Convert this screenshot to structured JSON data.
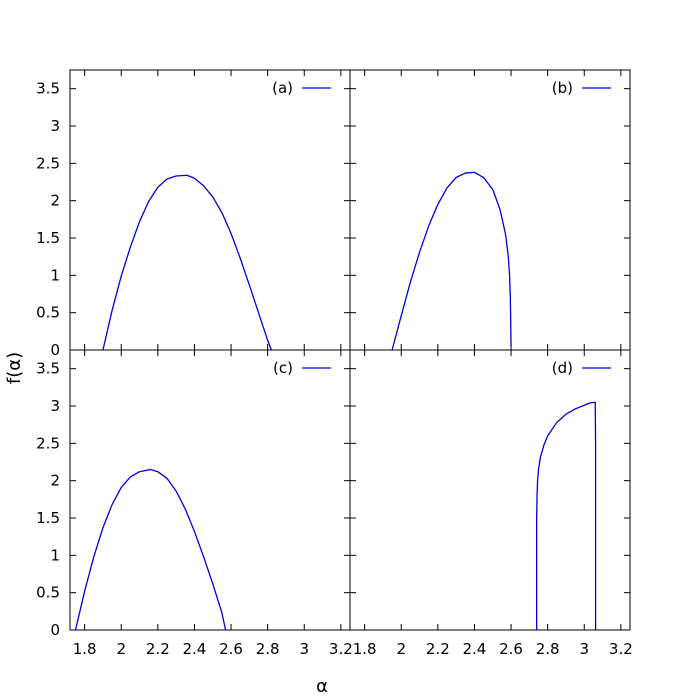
{
  "chart_data": {
    "type": "line",
    "xlabel": "α",
    "ylabel": "f(α)",
    "xlim": [
      1.72,
      3.25
    ],
    "ylim": [
      0,
      3.75
    ],
    "x_ticks": [
      "1.8",
      "2",
      "2.2",
      "2.4",
      "2.6",
      "2.8",
      "3",
      "3.2"
    ],
    "y_ticks": [
      "0",
      "0.5",
      "1",
      "1.5",
      "2",
      "2.5",
      "3",
      "3.5"
    ],
    "grid": false,
    "legend_position": "top-right",
    "line_color": "#0000dd",
    "panels": [
      {
        "label": "(a)",
        "points": [
          [
            1.9,
            0.0
          ],
          [
            1.95,
            0.53
          ],
          [
            2.0,
            0.99
          ],
          [
            2.05,
            1.38
          ],
          [
            2.1,
            1.72
          ],
          [
            2.15,
            1.99
          ],
          [
            2.2,
            2.18
          ],
          [
            2.25,
            2.29
          ],
          [
            2.3,
            2.33
          ],
          [
            2.36,
            2.34
          ],
          [
            2.4,
            2.3
          ],
          [
            2.45,
            2.2
          ],
          [
            2.5,
            2.05
          ],
          [
            2.55,
            1.84
          ],
          [
            2.6,
            1.56
          ],
          [
            2.65,
            1.23
          ],
          [
            2.7,
            0.87
          ],
          [
            2.75,
            0.5
          ],
          [
            2.8,
            0.13
          ],
          [
            2.82,
            0.0
          ]
        ]
      },
      {
        "label": "(b)",
        "points": [
          [
            1.95,
            0.0
          ],
          [
            2.0,
            0.46
          ],
          [
            2.05,
            0.91
          ],
          [
            2.1,
            1.31
          ],
          [
            2.15,
            1.66
          ],
          [
            2.2,
            1.95
          ],
          [
            2.25,
            2.17
          ],
          [
            2.3,
            2.31
          ],
          [
            2.35,
            2.37
          ],
          [
            2.4,
            2.38
          ],
          [
            2.45,
            2.31
          ],
          [
            2.5,
            2.15
          ],
          [
            2.54,
            1.88
          ],
          [
            2.57,
            1.55
          ],
          [
            2.585,
            1.25
          ],
          [
            2.592,
            1.0
          ],
          [
            2.596,
            0.7
          ],
          [
            2.598,
            0.4
          ],
          [
            2.6,
            0.05
          ]
        ]
      },
      {
        "label": "(c)",
        "points": [
          [
            1.75,
            0.0
          ],
          [
            1.8,
            0.52
          ],
          [
            1.85,
            0.98
          ],
          [
            1.9,
            1.37
          ],
          [
            1.95,
            1.68
          ],
          [
            2.0,
            1.91
          ],
          [
            2.05,
            2.05
          ],
          [
            2.1,
            2.12
          ],
          [
            2.16,
            2.15
          ],
          [
            2.2,
            2.12
          ],
          [
            2.25,
            2.03
          ],
          [
            2.3,
            1.86
          ],
          [
            2.35,
            1.62
          ],
          [
            2.4,
            1.32
          ],
          [
            2.45,
            0.98
          ],
          [
            2.5,
            0.62
          ],
          [
            2.55,
            0.23
          ],
          [
            2.57,
            0.0
          ]
        ]
      },
      {
        "label": "(d)",
        "points": [
          [
            2.74,
            0.0
          ],
          [
            2.74,
            1.5
          ],
          [
            2.742,
            1.8
          ],
          [
            2.745,
            2.0
          ],
          [
            2.75,
            2.15
          ],
          [
            2.76,
            2.31
          ],
          [
            2.78,
            2.48
          ],
          [
            2.8,
            2.6
          ],
          [
            2.85,
            2.78
          ],
          [
            2.9,
            2.89
          ],
          [
            2.95,
            2.96
          ],
          [
            3.0,
            3.01
          ],
          [
            3.03,
            3.04
          ],
          [
            3.06,
            3.05
          ],
          [
            3.062,
            2.5
          ],
          [
            3.062,
            1.0
          ],
          [
            3.062,
            0.0
          ]
        ]
      }
    ]
  }
}
